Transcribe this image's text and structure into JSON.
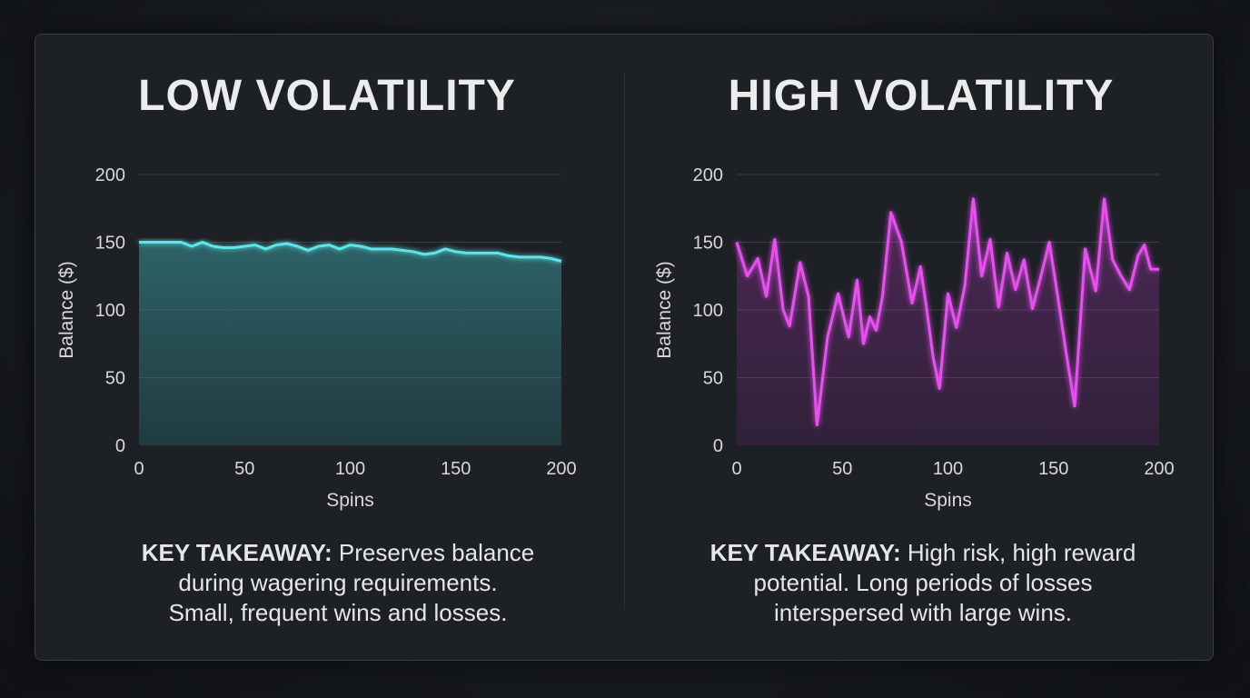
{
  "panels": [
    {
      "title": "LOW VOLATILITY",
      "takeaway_label": "KEY TAKEAWAY:",
      "takeaway_lines": [
        "Preserves balance",
        "during wagering requirements.",
        "Small, frequent wins and losses."
      ],
      "color": "#5ce6ea"
    },
    {
      "title": "HIGH VOLATILITY",
      "takeaway_label": "KEY TAKEAWAY:",
      "takeaway_lines": [
        "High risk, high reward",
        "potential. Long periods of losses",
        "interspersed with large wins."
      ],
      "color": "#e84ff0"
    }
  ],
  "chart_data": [
    {
      "type": "area",
      "xlabel": "Spins",
      "ylabel": "Balance ($)",
      "xlim": [
        0,
        200
      ],
      "ylim": [
        0,
        200
      ],
      "xticks": [
        0,
        50,
        100,
        150,
        200
      ],
      "yticks": [
        0,
        50,
        100,
        150,
        200
      ],
      "grid": true,
      "series": [
        {
          "x": [
            0,
            5,
            10,
            15,
            20,
            25,
            30,
            35,
            40,
            45,
            50,
            55,
            60,
            65,
            70,
            75,
            80,
            85,
            90,
            95,
            100,
            105,
            110,
            115,
            120,
            125,
            130,
            135,
            140,
            145,
            150,
            155,
            160,
            165,
            170,
            175,
            180,
            185,
            190,
            195,
            200
          ],
          "y": [
            150,
            150,
            150,
            150,
            150,
            147,
            150,
            147,
            146,
            146,
            147,
            148,
            145,
            148,
            149,
            147,
            144,
            147,
            148,
            145,
            148,
            147,
            145,
            145,
            145,
            144,
            143,
            141,
            142,
            145,
            143,
            142,
            142,
            142,
            142,
            140,
            139,
            139,
            139,
            138,
            136
          ],
          "color": "#5ce6ea"
        }
      ]
    },
    {
      "type": "area",
      "xlabel": "Spins",
      "ylabel": "Balance ($)",
      "xlim": [
        0,
        200
      ],
      "ylim": [
        0,
        200
      ],
      "xticks": [
        0,
        50,
        100,
        150,
        200
      ],
      "yticks": [
        0,
        50,
        100,
        150,
        200
      ],
      "grid": true,
      "series": [
        {
          "x": [
            0,
            5,
            10,
            14,
            18,
            22,
            25,
            30,
            34,
            38,
            43,
            48,
            53,
            57,
            60,
            63,
            66,
            69,
            73,
            78,
            83,
            87,
            90,
            93,
            96,
            100,
            104,
            108,
            112,
            116,
            120,
            124,
            128,
            132,
            136,
            140,
            144,
            148,
            152,
            156,
            160,
            165,
            170,
            174,
            178,
            182,
            186,
            190,
            193,
            196,
            200
          ],
          "y": [
            150,
            125,
            138,
            110,
            152,
            100,
            88,
            135,
            110,
            15,
            80,
            112,
            80,
            122,
            75,
            95,
            85,
            110,
            172,
            150,
            105,
            132,
            100,
            65,
            42,
            112,
            87,
            118,
            182,
            125,
            152,
            102,
            142,
            115,
            137,
            101,
            125,
            150,
            110,
            68,
            29,
            145,
            114,
            182,
            137,
            125,
            115,
            140,
            148,
            130,
            130
          ],
          "color": "#e84ff0"
        }
      ]
    }
  ]
}
